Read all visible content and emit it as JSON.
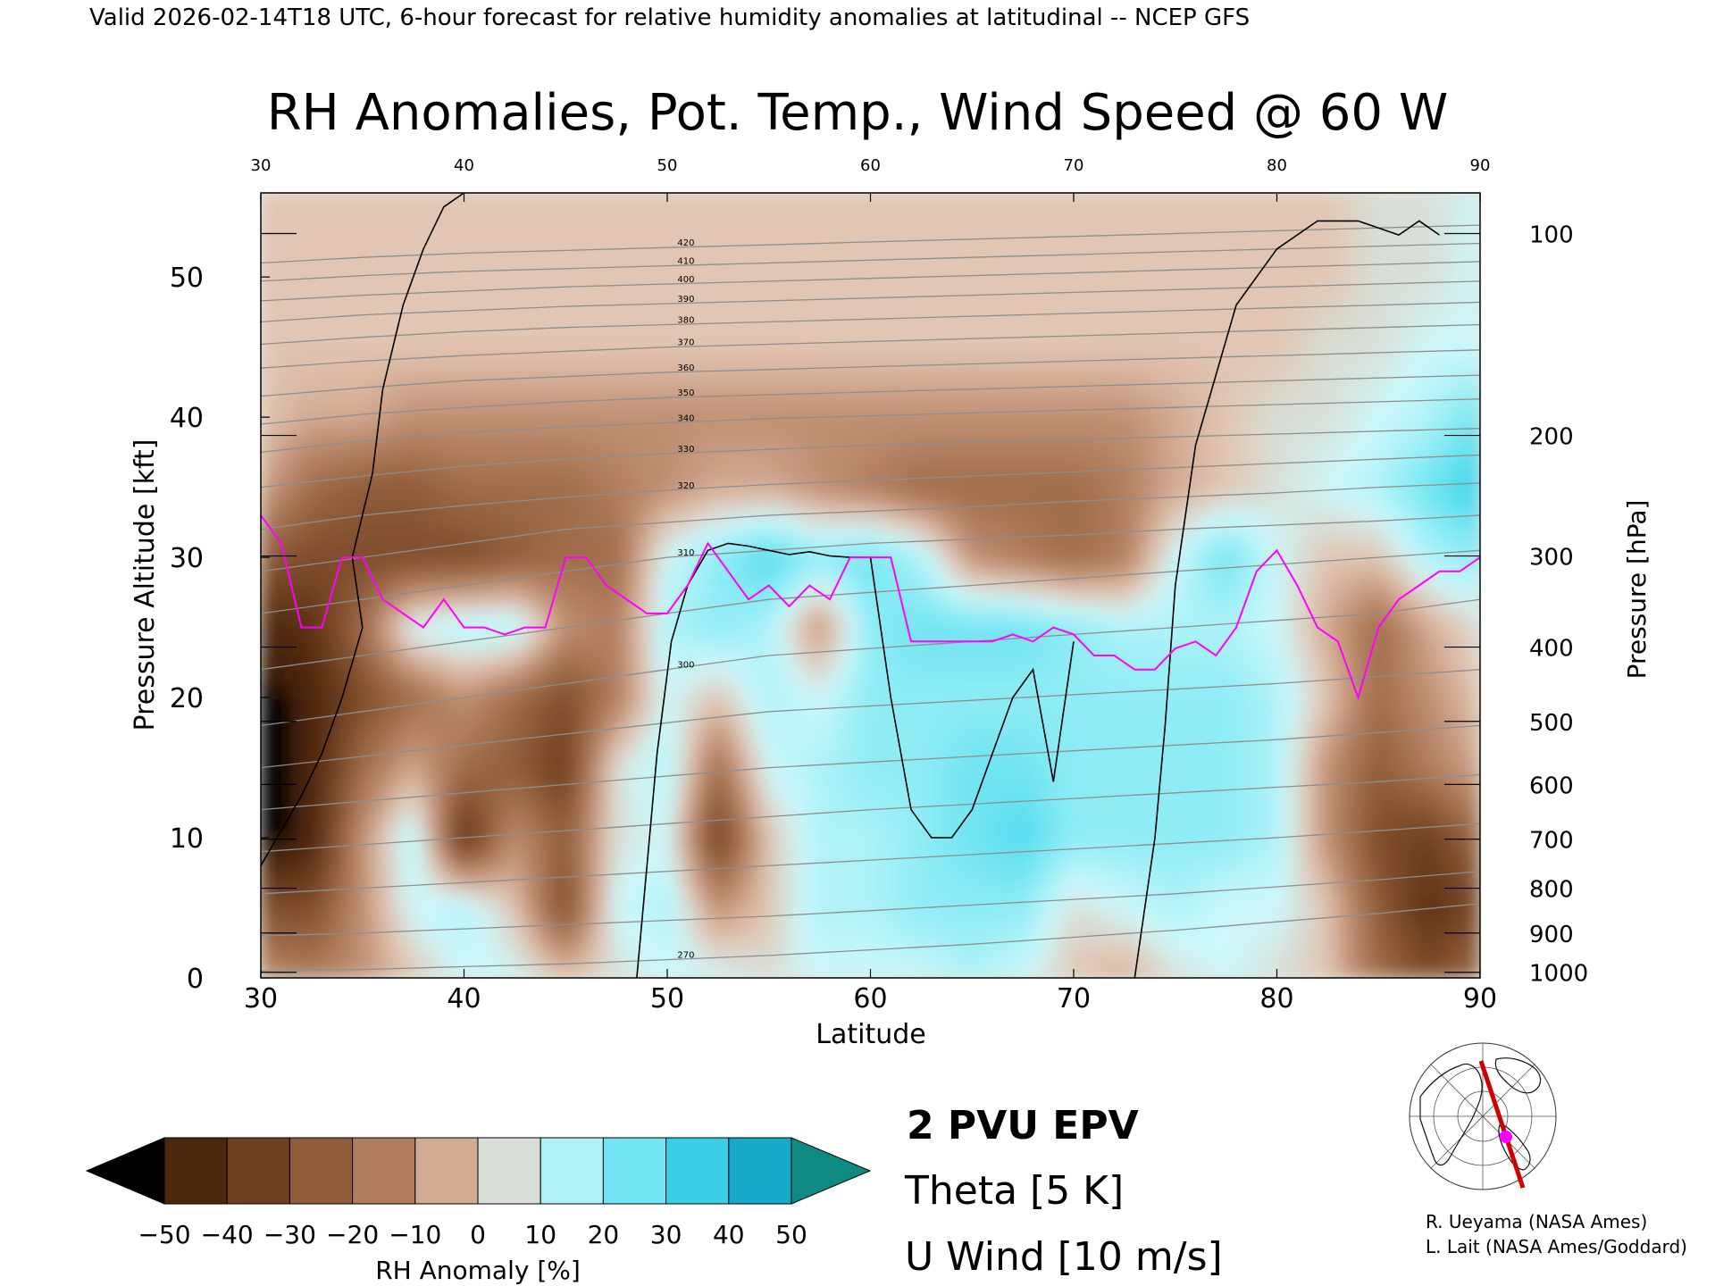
{
  "header": {
    "valid_line": "Valid 2026-02-14T18 UTC, 6-hour forecast for relative humidity anomalies at latitudinal -- NCEP GFS",
    "title": "RH Anomalies, Pot. Temp., Wind Speed @ 60 W"
  },
  "chart_data": {
    "type": "heatmap",
    "xlabel": "Latitude",
    "ylabel_left": "Pressure Altitude [kft]",
    "ylabel_right": "Pressure [hPa]",
    "xlim": [
      30,
      90
    ],
    "ylim": [
      0,
      56
    ],
    "x_ticks": [
      30,
      40,
      50,
      60,
      70,
      80,
      90
    ],
    "x_tick_labels": [
      "30",
      "40",
      "50",
      "60",
      "70",
      "80",
      "90"
    ],
    "y_ticks": [
      0,
      10,
      20,
      30,
      40,
      50
    ],
    "y_tick_labels": [
      "0",
      "10",
      "20",
      "30",
      "40",
      "50"
    ],
    "pressure_ticks": [
      {
        "hpa": 100,
        "label": "100",
        "kft": 53.1
      },
      {
        "hpa": 200,
        "label": "200",
        "kft": 38.7
      },
      {
        "hpa": 300,
        "label": "300",
        "kft": 30.1
      },
      {
        "hpa": 400,
        "label": "400",
        "kft": 23.6
      },
      {
        "hpa": 500,
        "label": "500",
        "kft": 18.3
      },
      {
        "hpa": 600,
        "label": "600",
        "kft": 13.8
      },
      {
        "hpa": 700,
        "label": "700",
        "kft": 9.9
      },
      {
        "hpa": 800,
        "label": "800",
        "kft": 6.4
      },
      {
        "hpa": 900,
        "label": "900",
        "kft": 3.2
      },
      {
        "hpa": 1000,
        "label": "1000",
        "kft": 0.4
      }
    ],
    "colorbar": {
      "label": "RH Anomaly [%]",
      "tick_labels": [
        "−50",
        "−40",
        "−30",
        "−20",
        "−10",
        "0",
        "10",
        "20",
        "30",
        "40",
        "50"
      ],
      "levels": [
        -50,
        -40,
        -30,
        -20,
        -10,
        0,
        10,
        20,
        30,
        40,
        50
      ],
      "colors": [
        "#3a1c05",
        "#5c3114",
        "#7f4c2b",
        "#a06c4a",
        "#c08f72",
        "#e2c5b2",
        "#cdf8fb",
        "#8eecf5",
        "#52dcef",
        "#28c0de",
        "#0891b2"
      ],
      "under_color": "#000000",
      "over_color": "#0e8a82"
    },
    "rh_anomaly_field": {
      "lat": [
        30,
        32.5,
        35,
        37.5,
        40,
        42.5,
        45,
        47.5,
        50,
        52.5,
        55,
        57.5,
        60,
        62.5,
        65,
        67.5,
        70,
        72.5,
        75,
        77.5,
        80,
        82.5,
        85,
        87.5,
        90
      ],
      "alt_kft": [
        0,
        5,
        10,
        15,
        20,
        25,
        30,
        35,
        40,
        45,
        50,
        56
      ],
      "values": [
        [
          -10,
          -15,
          -10,
          0,
          10,
          10,
          0,
          5,
          10,
          10,
          5,
          10,
          10,
          10,
          15,
          10,
          0,
          -5,
          5,
          10,
          5,
          0,
          -20,
          -30,
          -20
        ],
        [
          -30,
          -30,
          -10,
          10,
          15,
          0,
          -30,
          10,
          15,
          -10,
          0,
          15,
          15,
          20,
          20,
          20,
          5,
          10,
          15,
          10,
          10,
          0,
          -25,
          -40,
          -30
        ],
        [
          -55,
          -45,
          -10,
          15,
          -40,
          -10,
          -25,
          5,
          10,
          -35,
          0,
          15,
          15,
          20,
          25,
          30,
          20,
          20,
          20,
          20,
          15,
          -10,
          -30,
          -35,
          -20
        ],
        [
          -55,
          -45,
          -20,
          -5,
          -20,
          -25,
          -35,
          5,
          15,
          -20,
          10,
          15,
          20,
          20,
          25,
          25,
          20,
          20,
          20,
          20,
          15,
          -10,
          -25,
          -15,
          -5
        ],
        [
          -55,
          -45,
          -30,
          -20,
          -10,
          -20,
          -30,
          -15,
          10,
          0,
          15,
          10,
          20,
          20,
          20,
          20,
          20,
          20,
          20,
          20,
          15,
          0,
          -20,
          -10,
          0
        ],
        [
          -45,
          -40,
          -20,
          10,
          15,
          15,
          -10,
          -15,
          15,
          20,
          15,
          -10,
          20,
          25,
          25,
          25,
          20,
          15,
          15,
          15,
          10,
          -5,
          -20,
          -5,
          5
        ],
        [
          -25,
          -30,
          -30,
          -30,
          -30,
          -25,
          -20,
          -20,
          10,
          20,
          30,
          20,
          25,
          15,
          -10,
          -15,
          -20,
          -15,
          10,
          25,
          10,
          0,
          0,
          15,
          20
        ],
        [
          -5,
          -20,
          -25,
          -25,
          -20,
          -20,
          -20,
          -15,
          -10,
          -5,
          -5,
          -10,
          -15,
          -20,
          -20,
          -20,
          -20,
          -15,
          -5,
          0,
          5,
          10,
          15,
          25,
          35
        ],
        [
          0,
          -5,
          -5,
          -10,
          -10,
          -10,
          -10,
          -10,
          -10,
          -10,
          -10,
          -10,
          -10,
          -10,
          -10,
          -10,
          -10,
          -10,
          -5,
          0,
          5,
          5,
          10,
          15,
          25
        ],
        [
          0,
          0,
          0,
          0,
          0,
          0,
          0,
          0,
          0,
          0,
          0,
          0,
          0,
          0,
          0,
          0,
          0,
          0,
          0,
          0,
          0,
          5,
          5,
          10,
          10
        ],
        [
          0,
          0,
          0,
          0,
          0,
          0,
          0,
          0,
          0,
          0,
          0,
          0,
          0,
          0,
          0,
          0,
          0,
          0,
          0,
          0,
          0,
          0,
          5,
          5,
          10
        ],
        [
          0,
          0,
          0,
          0,
          0,
          0,
          0,
          0,
          0,
          0,
          0,
          0,
          0,
          0,
          0,
          0,
          0,
          0,
          0,
          0,
          0,
          0,
          5,
          5,
          10
        ]
      ]
    },
    "theta_contour_labels": [
      "270",
      "300",
      "310",
      "320",
      "330",
      "340",
      "350",
      "360",
      "370",
      "380",
      "390",
      "400",
      "410",
      "420"
    ],
    "theta_isentropes": [
      {
        "theta": 270,
        "alt": [
          0.5,
          0.6,
          0.8,
          1,
          1.3,
          1.6,
          2,
          2.4,
          2.9,
          3.4,
          4,
          4.6,
          5.3
        ]
      },
      {
        "theta": 275,
        "alt": [
          3,
          3.2,
          3.5,
          3.8,
          4.1,
          4.4,
          4.8,
          5.2,
          5.6,
          6,
          6.5,
          7,
          7.6
        ]
      },
      {
        "theta": 280,
        "alt": [
          6,
          6.4,
          6.8,
          7.2,
          7.6,
          8,
          8.4,
          8.8,
          9.2,
          9.6,
          10,
          10.5,
          11
        ]
      },
      {
        "theta": 285,
        "alt": [
          9,
          9.5,
          10,
          10.5,
          11,
          11.5,
          12,
          12.4,
          12.8,
          13.2,
          13.6,
          14,
          14.5
        ]
      },
      {
        "theta": 290,
        "alt": [
          12,
          12.6,
          13.2,
          13.8,
          14.4,
          15,
          15.4,
          15.8,
          16.2,
          16.6,
          17,
          17.5,
          18
        ]
      },
      {
        "theta": 295,
        "alt": [
          15,
          15.8,
          16.6,
          17.4,
          18.2,
          19,
          19.4,
          19.8,
          20.2,
          20.6,
          21,
          21.5,
          22
        ]
      },
      {
        "theta": 300,
        "alt": [
          18,
          19,
          20,
          21,
          22,
          23,
          23.5,
          24,
          24.5,
          25,
          25.5,
          26,
          27
        ]
      },
      {
        "theta": 305,
        "alt": [
          22,
          23,
          24,
          25,
          26,
          27,
          27.5,
          28,
          28.5,
          29,
          29.5,
          30,
          30.5
        ]
      },
      {
        "theta": 310,
        "alt": [
          26,
          27,
          28,
          29,
          30,
          30.5,
          31,
          31.3,
          31.6,
          32,
          32.3,
          32.6,
          33
        ]
      },
      {
        "theta": 315,
        "alt": [
          29,
          30,
          31,
          32,
          32.5,
          33,
          33.3,
          33.6,
          34,
          34.3,
          34.6,
          35,
          35.3
        ]
      },
      {
        "theta": 320,
        "alt": [
          32,
          33,
          33.7,
          34.3,
          34.8,
          35.2,
          35.5,
          35.8,
          36.1,
          36.4,
          36.7,
          37,
          37.3
        ]
      },
      {
        "theta": 330,
        "alt": [
          35,
          35.8,
          36.5,
          37,
          37.4,
          37.7,
          38,
          38.2,
          38.4,
          38.6,
          38.8,
          39,
          39.2
        ]
      },
      {
        "theta": 340,
        "alt": [
          37.5,
          38.3,
          38.9,
          39.3,
          39.6,
          39.9,
          40.1,
          40.3,
          40.5,
          40.7,
          40.9,
          41.1,
          41.3
        ]
      },
      {
        "theta": 350,
        "alt": [
          39.5,
          40.2,
          40.7,
          41.1,
          41.4,
          41.6,
          41.8,
          42,
          42.2,
          42.4,
          42.6,
          42.8,
          43
        ]
      },
      {
        "theta": 360,
        "alt": [
          41.5,
          42.1,
          42.6,
          42.9,
          43.2,
          43.4,
          43.6,
          43.8,
          44,
          44.2,
          44.4,
          44.6,
          44.8
        ]
      },
      {
        "theta": 370,
        "alt": [
          43.5,
          44,
          44.4,
          44.7,
          45,
          45.2,
          45.4,
          45.6,
          45.8,
          46,
          46.2,
          46.4,
          46.6
        ]
      },
      {
        "theta": 380,
        "alt": [
          45.2,
          45.7,
          46.1,
          46.4,
          46.6,
          46.8,
          47,
          47.2,
          47.4,
          47.6,
          47.8,
          48,
          48.2
        ]
      },
      {
        "theta": 390,
        "alt": [
          46.8,
          47.3,
          47.6,
          47.9,
          48.1,
          48.3,
          48.5,
          48.7,
          48.9,
          49.1,
          49.3,
          49.5,
          49.7
        ]
      },
      {
        "theta": 400,
        "alt": [
          48.3,
          48.7,
          49,
          49.3,
          49.5,
          49.7,
          49.9,
          50.1,
          50.3,
          50.5,
          50.7,
          50.9,
          51.1
        ]
      },
      {
        "theta": 410,
        "alt": [
          49.7,
          50.1,
          50.4,
          50.6,
          50.8,
          51,
          51.2,
          51.4,
          51.6,
          51.8,
          52,
          52.2,
          52.4
        ]
      },
      {
        "theta": 420,
        "alt": [
          51,
          51.4,
          51.7,
          51.9,
          52.1,
          52.3,
          52.5,
          52.7,
          52.9,
          53.1,
          53.3,
          53.5,
          53.7
        ]
      }
    ],
    "theta_lat": [
      30,
      35,
      40,
      45,
      50,
      55,
      60,
      65,
      70,
      75,
      80,
      85,
      90
    ],
    "pv2_line": {
      "lat": [
        30,
        31,
        32,
        33,
        34,
        35,
        36,
        37,
        38,
        39,
        40,
        41,
        42,
        43,
        44,
        45,
        46,
        47,
        48,
        49,
        50,
        51,
        52,
        53,
        54,
        55,
        56,
        57,
        58,
        59,
        60,
        61,
        62,
        63,
        64,
        65,
        66,
        67,
        68,
        69,
        70,
        71,
        72,
        73,
        74,
        75,
        76,
        77,
        78,
        79,
        80,
        81,
        82,
        83,
        84,
        85,
        86,
        87,
        88,
        89,
        90
      ],
      "alt": [
        33,
        31,
        25,
        25,
        30,
        30,
        27,
        26,
        25,
        27,
        25,
        25,
        24.5,
        25,
        25,
        30,
        30,
        28,
        27,
        26,
        26,
        28,
        31,
        29,
        27,
        28,
        26.5,
        28,
        27,
        30,
        30,
        30,
        24,
        24,
        24,
        24,
        24,
        24.5,
        24,
        25,
        24.5,
        23,
        23,
        22,
        22,
        23.5,
        24,
        23,
        25,
        29,
        30.5,
        28,
        25,
        24,
        20,
        25,
        27,
        28,
        29,
        29,
        30
      ]
    },
    "u_wind_zero_line": {
      "lat": [
        48.5,
        49,
        49.5,
        50.2,
        51,
        52,
        53,
        54,
        55,
        56,
        57,
        58,
        59,
        60
      ],
      "alt": [
        0,
        8,
        16,
        24,
        28,
        30.5,
        31,
        30.8,
        30.5,
        30.2,
        30.4,
        30.1,
        30,
        30
      ]
    },
    "u_wind_10_lines": [
      {
        "lat": [
          30,
          32,
          33,
          34,
          35,
          34.5,
          35.5,
          36,
          37,
          38,
          39,
          40
        ],
        "alt": [
          8,
          13,
          16,
          20,
          25,
          30,
          36,
          42,
          48,
          52,
          55,
          56
        ]
      },
      {
        "lat": [
          60,
          61,
          62,
          63,
          64,
          65,
          66,
          67,
          68,
          69,
          70
        ],
        "alt": [
          30,
          20,
          12,
          10,
          10,
          12,
          16,
          20,
          22,
          14,
          24
        ]
      },
      {
        "lat": [
          73,
          74,
          74.5,
          75,
          76,
          78,
          80,
          82,
          84,
          86,
          87,
          88
        ],
        "alt": [
          0,
          10,
          18,
          28,
          38,
          48,
          52,
          54,
          54,
          53,
          54,
          53
        ]
      }
    ],
    "legend": {
      "pv": "2 PVU EPV",
      "theta": "Theta [5 K]",
      "wind": "U Wind [10 m/s]",
      "pv_color": "#ff00ff",
      "theta_color": "#a0a0a0",
      "wind_color": "#000000"
    },
    "grid": false,
    "inset_map": {
      "section_color": "#d00000",
      "point_color": "#ff00ff"
    }
  },
  "credits": {
    "line1": "R. Ueyama (NASA Ames)",
    "line2": "L. Lait (NASA Ames/Goddard)"
  }
}
